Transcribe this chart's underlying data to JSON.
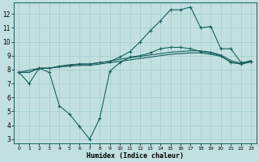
{
  "xlabel": "Humidex (Indice chaleur)",
  "background_color": "#c2e0e0",
  "grid_color": "#a0cccc",
  "line_color": "#1a6060",
  "xlim": [
    -0.5,
    23.5
  ],
  "ylim": [
    2.7,
    12.8
  ],
  "yticks": [
    3,
    4,
    5,
    6,
    7,
    8,
    9,
    10,
    11,
    12
  ],
  "xticks": [
    0,
    1,
    2,
    3,
    4,
    5,
    6,
    7,
    8,
    9,
    10,
    11,
    12,
    13,
    14,
    15,
    16,
    17,
    18,
    19,
    20,
    21,
    22,
    23
  ],
  "series1_x": [
    0,
    1,
    2,
    3,
    4,
    5,
    6,
    7,
    8,
    9,
    10,
    11,
    12,
    13,
    14,
    15,
    16,
    17,
    18,
    19,
    20,
    21,
    22,
    23
  ],
  "series1_y": [
    7.8,
    7.0,
    8.1,
    7.8,
    5.4,
    4.8,
    3.9,
    3.0,
    4.5,
    7.9,
    8.5,
    8.9,
    9.0,
    9.2,
    9.5,
    9.6,
    9.6,
    9.5,
    9.3,
    9.2,
    9.0,
    8.5,
    8.4,
    8.6
  ],
  "series2_x": [
    0,
    1,
    2,
    3,
    4,
    5,
    6,
    7,
    8,
    9,
    10,
    11,
    12,
    13,
    14,
    15,
    16,
    17,
    18,
    19,
    20,
    21,
    22,
    23
  ],
  "series2_y": [
    7.8,
    7.8,
    8.1,
    8.1,
    8.2,
    8.25,
    8.3,
    8.3,
    8.4,
    8.5,
    8.6,
    8.7,
    8.8,
    8.9,
    9.0,
    9.1,
    9.15,
    9.2,
    9.2,
    9.1,
    8.95,
    8.55,
    8.4,
    8.55
  ],
  "series3_x": [
    0,
    1,
    2,
    3,
    4,
    5,
    6,
    7,
    8,
    9,
    10,
    11,
    12,
    13,
    14,
    15,
    16,
    17,
    18,
    19,
    20,
    21,
    22,
    23
  ],
  "series3_y": [
    7.8,
    7.8,
    8.1,
    8.1,
    8.25,
    8.35,
    8.4,
    8.4,
    8.5,
    8.6,
    8.75,
    8.85,
    8.95,
    9.05,
    9.15,
    9.25,
    9.3,
    9.35,
    9.35,
    9.25,
    9.05,
    8.65,
    8.45,
    8.65
  ],
  "series4_x": [
    0,
    2,
    3,
    4,
    5,
    6,
    7,
    8,
    9,
    10,
    11,
    12,
    13,
    14,
    15,
    16,
    17,
    18,
    19,
    20,
    21,
    22,
    23
  ],
  "series4_y": [
    7.8,
    8.1,
    8.1,
    8.2,
    8.3,
    8.4,
    8.4,
    8.5,
    8.6,
    8.9,
    9.3,
    10.0,
    10.8,
    11.5,
    12.3,
    12.3,
    12.5,
    11.0,
    11.1,
    9.5,
    9.5,
    8.5,
    8.6
  ]
}
